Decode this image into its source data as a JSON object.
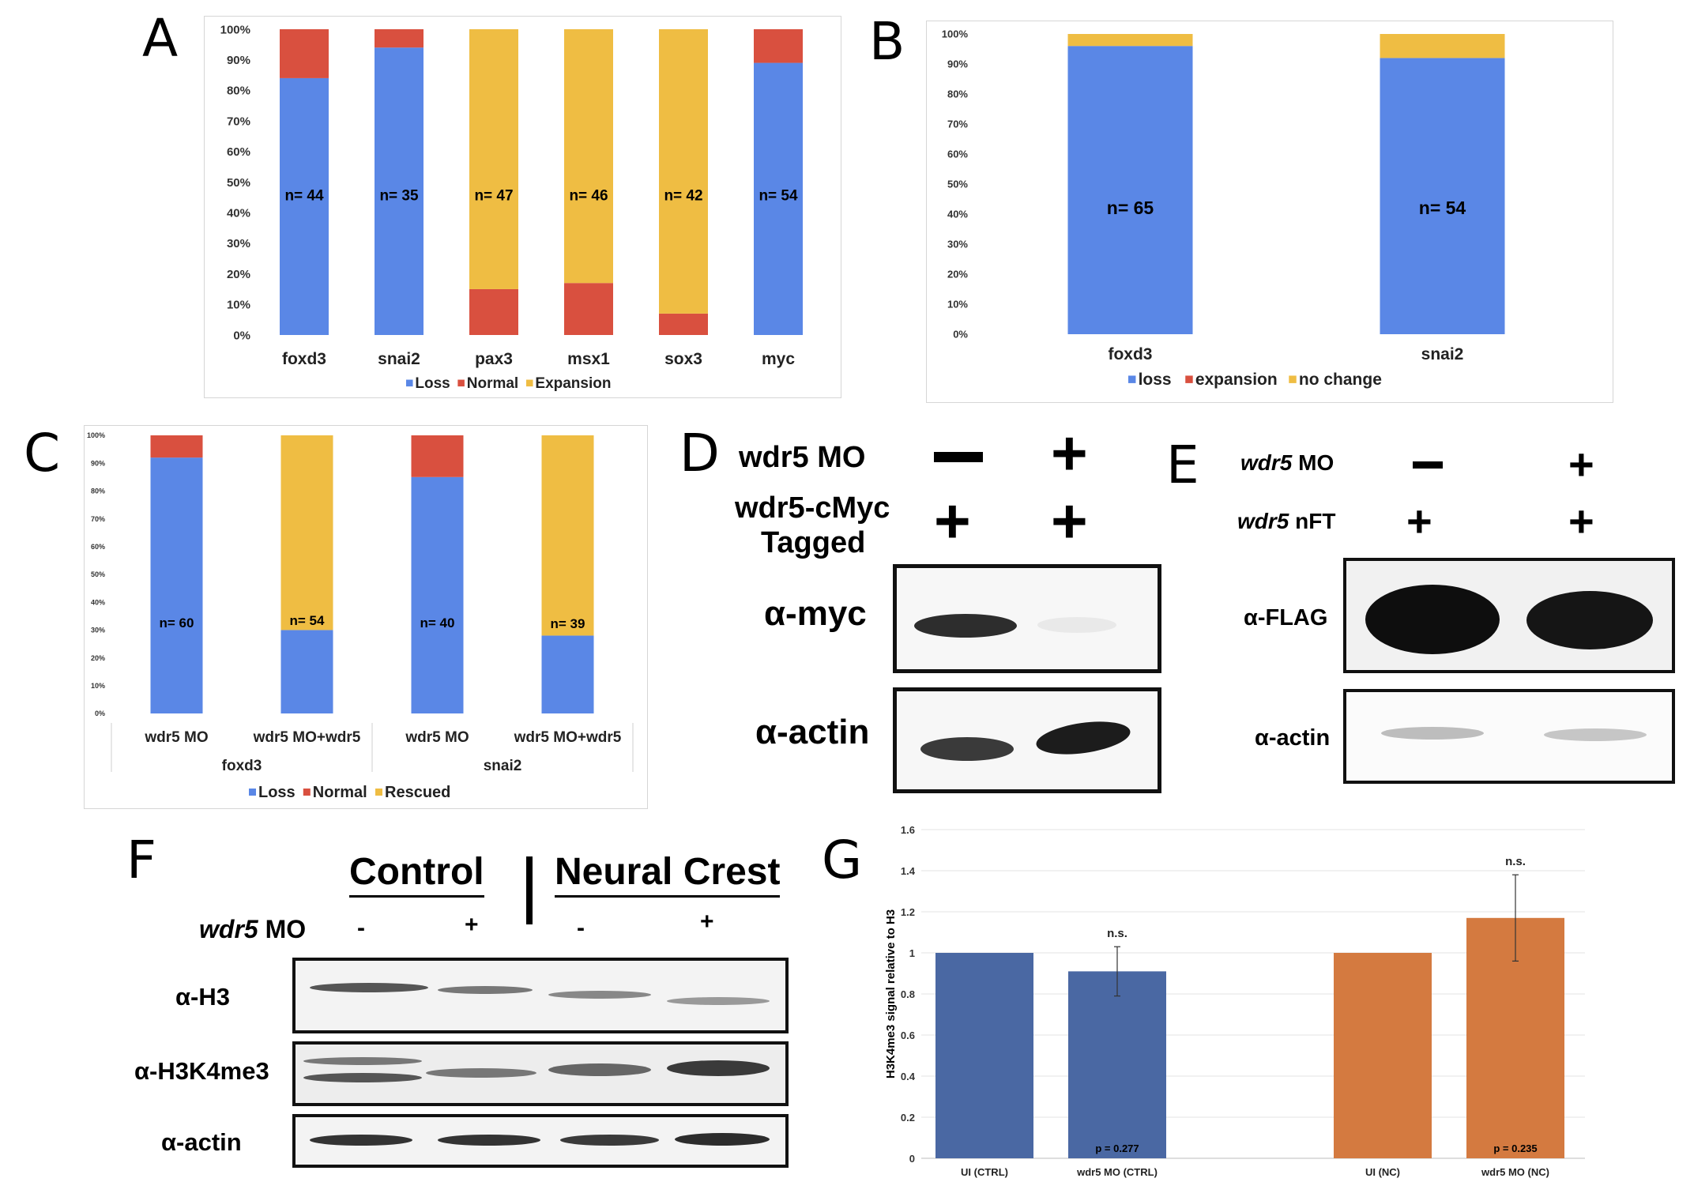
{
  "panels": {
    "A": "A",
    "B": "B",
    "C": "C",
    "D": "D",
    "E": "E",
    "F": "F",
    "G": "G"
  },
  "chart_data": [
    {
      "id": "A",
      "type": "bar",
      "stacked": true,
      "categories": [
        "foxd3",
        "snai2",
        "pax3",
        "msx1",
        "sox3",
        "myc"
      ],
      "series": [
        {
          "name": "Loss",
          "color": "#5a87e6",
          "values": [
            84,
            94,
            0,
            0,
            0,
            89
          ]
        },
        {
          "name": "Normal",
          "color": "#d9503f",
          "values": [
            16,
            6,
            15,
            17,
            7,
            11
          ]
        },
        {
          "name": "Expansion",
          "color": "#efbd43",
          "values": [
            0,
            0,
            85,
            83,
            93,
            0
          ]
        }
      ],
      "n_labels": [
        "n= 44",
        "n= 35",
        "n= 47",
        "n= 46",
        "n= 42",
        "n= 54"
      ],
      "yticks": [
        "0%",
        "10%",
        "20%",
        "30%",
        "40%",
        "50%",
        "60%",
        "70%",
        "80%",
        "90%",
        "100%"
      ],
      "ylim": [
        0,
        100
      ],
      "legend": "bottom"
    },
    {
      "id": "B",
      "type": "bar",
      "stacked": true,
      "categories": [
        "foxd3",
        "snai2"
      ],
      "series": [
        {
          "name": "loss",
          "color": "#5a87e6",
          "values": [
            96,
            92
          ]
        },
        {
          "name": "expansion",
          "color": "#d9503f",
          "values": [
            0,
            0
          ]
        },
        {
          "name": "no change",
          "color": "#efbd43",
          "values": [
            4,
            8
          ]
        }
      ],
      "n_labels": [
        "n= 65",
        "n= 54"
      ],
      "yticks": [
        "0%",
        "10%",
        "20%",
        "30%",
        "40%",
        "50%",
        "60%",
        "70%",
        "80%",
        "90%",
        "100%"
      ],
      "ylim": [
        0,
        100
      ],
      "legend": "bottom"
    },
    {
      "id": "C",
      "type": "bar",
      "stacked": true,
      "categories": [
        "wdr5 MO",
        "wdr5 MO+wdr5",
        "wdr5 MO",
        "wdr5 MO+wdr5"
      ],
      "groups": [
        "foxd3",
        "snai2"
      ],
      "series": [
        {
          "name": "Loss",
          "color": "#5a87e6",
          "values": [
            92,
            30,
            85,
            28
          ]
        },
        {
          "name": "Normal",
          "color": "#d9503f",
          "values": [
            8,
            0,
            15,
            0
          ]
        },
        {
          "name": "Rescued",
          "color": "#efbd43",
          "values": [
            0,
            70,
            0,
            72
          ]
        }
      ],
      "n_labels": [
        "n= 60",
        "n= 54",
        "n= 40",
        "n= 39"
      ],
      "yticks": [
        "0%",
        "10%",
        "20%",
        "30%",
        "40%",
        "50%",
        "60%",
        "70%",
        "80%",
        "90%",
        "100%"
      ],
      "ylim": [
        0,
        100
      ],
      "legend": "bottom"
    },
    {
      "id": "G",
      "type": "bar",
      "categories": [
        "UI (CTRL)",
        "wdr5 MO (CTRL)",
        "UI (NC)",
        "wdr5 MO (NC)"
      ],
      "values": [
        1.0,
        0.91,
        1.0,
        1.17
      ],
      "errors": [
        0,
        0.12,
        0,
        0.21
      ],
      "colors": [
        "#4a68a3",
        "#4a68a3",
        "#d47a40",
        "#d47a40"
      ],
      "annotations": [
        "",
        "n.s.",
        "",
        "n.s."
      ],
      "pvalues": [
        "",
        "p = 0.277",
        "",
        "p = 0.235"
      ],
      "ylabel": "H3K4me3 signal relative to H3",
      "yticks": [
        "0",
        "0.2",
        "0.4",
        "0.6",
        "0.8",
        "1",
        "1.2",
        "1.4",
        "1.6"
      ],
      "ylim": [
        0,
        1.6
      ]
    }
  ],
  "blotD": {
    "row1_label": "wdr5 MO",
    "row2_label_line1": "wdr5-cMyc",
    "row2_label_line2": "Tagged",
    "minus": "−",
    "plus": "+",
    "ab1": "α-myc",
    "ab2": "α-actin"
  },
  "blotE": {
    "row1_gene": "wdr5",
    "row1_suffix": " MO",
    "row2_gene": "wdr5",
    "row2_suffix": " nFT",
    "minus": "−",
    "plus": "+",
    "ab1": "α-FLAG",
    "ab2": "α-actin"
  },
  "blotF": {
    "group1": "Control",
    "group2": "Neural Crest",
    "row_gene": "wdr5",
    "row_suffix": " MO",
    "lanes": [
      "-",
      "+",
      "-",
      "+"
    ],
    "ab1": "α-H3",
    "ab2": "α-H3K4me3",
    "ab3": "α-actin"
  }
}
